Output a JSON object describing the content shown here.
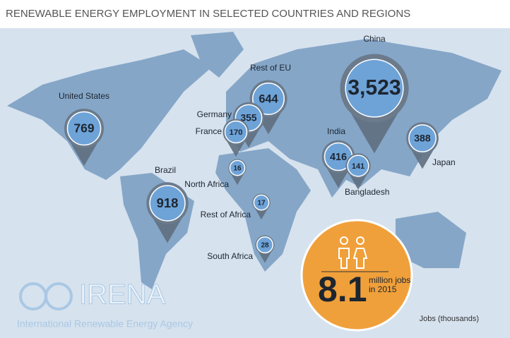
{
  "title": "RENEWABLE ENERGY EMPLOYMENT IN SELECTED COUNTRIES AND REGIONS",
  "markers": [
    {
      "label": "United States",
      "value": 769
    },
    {
      "label": "Brazil",
      "value": 918
    },
    {
      "label": "Rest of EU",
      "value": 644
    },
    {
      "label": "Germany",
      "value": 355
    },
    {
      "label": "France",
      "value": 170
    },
    {
      "label": "North Africa",
      "value": 16
    },
    {
      "label": "Rest of Africa",
      "value": 17
    },
    {
      "label": "South Africa",
      "value": 28
    },
    {
      "label": "China",
      "value": 3523,
      "value_label": "3,523"
    },
    {
      "label": "India",
      "value": 416
    },
    {
      "label": "Bangladesh",
      "value": 141
    },
    {
      "label": "Japan",
      "value": 388
    }
  ],
  "total": {
    "value": 8.1,
    "label": "million jobs in 2015"
  },
  "legend": "Jobs (thousands)",
  "logo": {
    "name": "IRENA",
    "subtitle": "International Renewable Energy Agency"
  }
}
